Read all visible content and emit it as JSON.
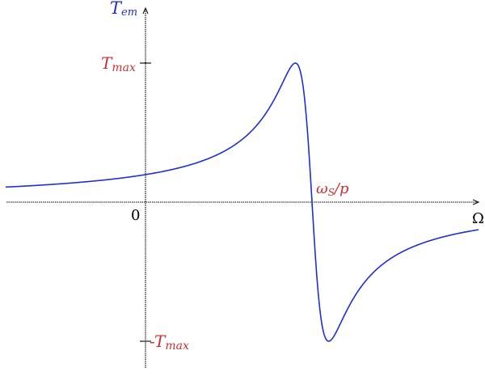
{
  "chart_data": {
    "type": "line",
    "title": "",
    "xlabel": "Ω",
    "ylabel": "T",
    "ylabel_subscript": "em",
    "origin_label": "0",
    "annotations": {
      "tmax": {
        "main": "T",
        "sub": "max"
      },
      "tmin": {
        "prefix": "-",
        "main": "T",
        "sub": "max"
      },
      "sync": {
        "main": "ω",
        "sub": "S",
        "tail": "/p"
      }
    },
    "axis_style": "dashed arrows, no grid",
    "colors": {
      "curve": "#1f2fd0",
      "ylabel": "#1f2fd0",
      "annotation": "#c83232",
      "axis": "#000000"
    },
    "xlim": [
      -0.84,
      2.0
    ],
    "ylim": [
      -1.03,
      1.38
    ],
    "sync_speed": 1.0,
    "slip_max": 0.1,
    "t_max": 1.0,
    "series": [
      {
        "x": [
          -0.84,
          -0.7,
          -0.5,
          -0.3,
          -0.1,
          0.0,
          0.1,
          0.2,
          0.3,
          0.4,
          0.5,
          0.6,
          0.7,
          0.75,
          0.8,
          0.85,
          0.88,
          0.9,
          0.92,
          0.94,
          0.96,
          0.98,
          1.0,
          1.02,
          1.04,
          1.06,
          1.08,
          1.1,
          1.12,
          1.15,
          1.2,
          1.3,
          1.4,
          1.5,
          1.6,
          1.7,
          1.8,
          1.9,
          2.0
        ],
        "y": [
          0.131,
          0.146,
          0.171,
          0.203,
          0.248,
          0.277,
          0.313,
          0.359,
          0.419,
          0.5,
          0.615,
          0.78,
          0.938,
          0.988,
          1.0,
          0.941,
          0.862,
          0.8,
          0.724,
          0.634,
          0.528,
          0.406,
          0.0,
          -0.406,
          -0.528,
          -0.634,
          -0.724,
          -0.8,
          -0.862,
          -0.941,
          -1.0,
          -0.8,
          -0.6,
          -0.471,
          -0.385,
          -0.324,
          -0.28,
          -0.246,
          -0.22
        ]
      }
    ]
  }
}
